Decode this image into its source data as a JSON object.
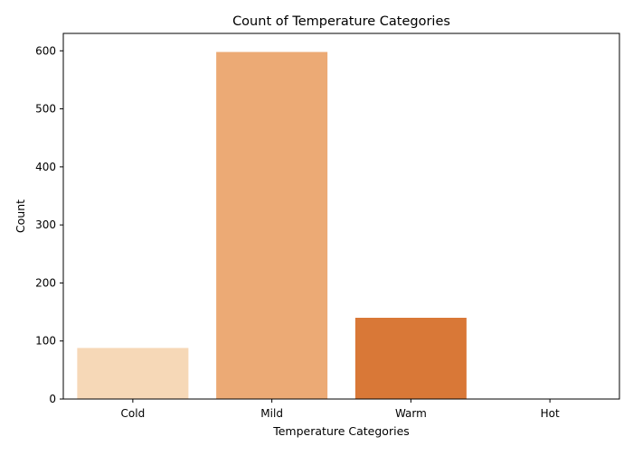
{
  "chart_data": {
    "type": "bar",
    "title": "Count of Temperature Categories",
    "xlabel": "Temperature Categories",
    "ylabel": "Count",
    "categories": [
      "Cold",
      "Mild",
      "Warm",
      "Hot"
    ],
    "values": [
      88,
      598,
      140,
      0
    ],
    "ylim": [
      0,
      630
    ],
    "yticks": [
      0,
      100,
      200,
      300,
      400,
      500,
      600
    ],
    "colors": [
      "#f6d8b7",
      "#ecaa75",
      "#d97837",
      "#a84100"
    ],
    "grid": false,
    "legend": "none"
  }
}
